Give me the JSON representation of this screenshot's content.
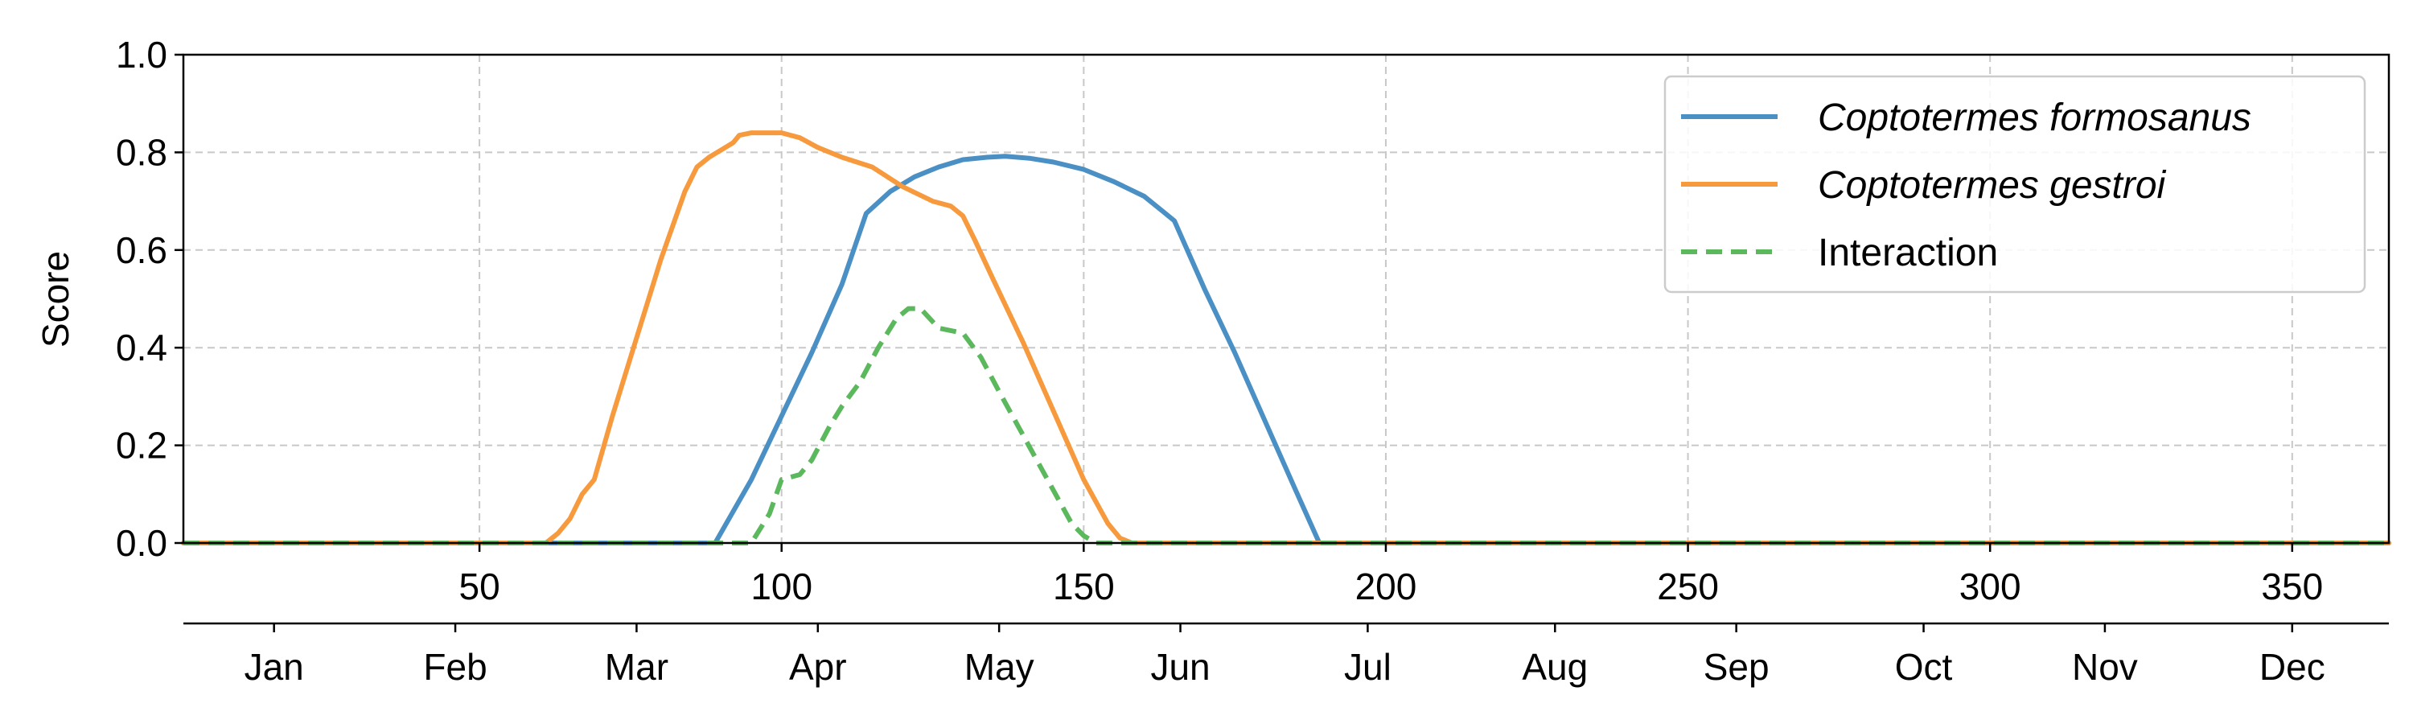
{
  "chart_data": {
    "type": "line",
    "xlabel": "",
    "ylabel": "Score",
    "xlim": [
      1,
      366
    ],
    "ylim": [
      0,
      1.0
    ],
    "x_ticks": [
      50,
      100,
      150,
      200,
      250,
      300,
      350
    ],
    "y_ticks": [
      "0.0",
      "0.2",
      "0.4",
      "0.6",
      "0.8",
      "1.0"
    ],
    "grid": true,
    "legend_position": "top-right",
    "month_axis": {
      "labels": [
        "Jan",
        "Feb",
        "Mar",
        "Apr",
        "May",
        "Jun",
        "Jul",
        "Aug",
        "Sep",
        "Oct",
        "Nov",
        "Dec"
      ],
      "centers": [
        16,
        46,
        76,
        106,
        136,
        166,
        197,
        228,
        258,
        289,
        319,
        350
      ]
    },
    "series": [
      {
        "name": "Coptotermes formosanus",
        "italic": true,
        "color": "#4a90c4",
        "style": "solid",
        "x": [
          1,
          89,
          95,
          100,
          105,
          110,
          114,
          118,
          122,
          126,
          130,
          134,
          137,
          141,
          145,
          150,
          155,
          160,
          163,
          165,
          170,
          175,
          180,
          185,
          189,
          366
        ],
        "y": [
          0,
          0,
          0.13,
          0.26,
          0.39,
          0.53,
          0.675,
          0.72,
          0.75,
          0.77,
          0.785,
          0.79,
          0.792,
          0.788,
          0.78,
          0.765,
          0.74,
          0.71,
          0.68,
          0.66,
          0.52,
          0.39,
          0.25,
          0.11,
          0.0,
          0
        ]
      },
      {
        "name": "Coptotermes gestroi",
        "italic": true,
        "color": "#f79a3e",
        "style": "solid",
        "x": [
          1,
          61,
          63,
          65,
          67,
          69,
          72,
          76,
          80,
          84,
          86,
          88,
          90,
          92,
          93,
          95,
          97,
          100,
          103,
          106,
          110,
          115,
          120,
          125,
          128,
          130,
          132,
          135,
          140,
          145,
          150,
          154,
          156,
          158,
          366
        ],
        "y": [
          0,
          0,
          0.02,
          0.05,
          0.1,
          0.13,
          0.26,
          0.42,
          0.58,
          0.72,
          0.77,
          0.79,
          0.805,
          0.82,
          0.835,
          0.84,
          0.84,
          0.84,
          0.83,
          0.81,
          0.79,
          0.77,
          0.73,
          0.7,
          0.69,
          0.67,
          0.62,
          0.54,
          0.41,
          0.27,
          0.13,
          0.04,
          0.01,
          0.0,
          0
        ]
      },
      {
        "name": "Interaction",
        "italic": false,
        "color": "#5cb85c",
        "style": "dashed",
        "x": [
          1,
          95,
          98,
          100,
          103,
          105,
          108,
          110,
          113,
          116,
          119,
          121,
          123,
          126,
          130,
          133,
          136,
          140,
          144,
          148,
          150,
          152,
          366
        ],
        "y": [
          0,
          0,
          0.06,
          0.13,
          0.14,
          0.17,
          0.24,
          0.28,
          0.33,
          0.4,
          0.46,
          0.48,
          0.48,
          0.44,
          0.43,
          0.38,
          0.31,
          0.22,
          0.13,
          0.04,
          0.015,
          0.0,
          0
        ]
      }
    ]
  }
}
